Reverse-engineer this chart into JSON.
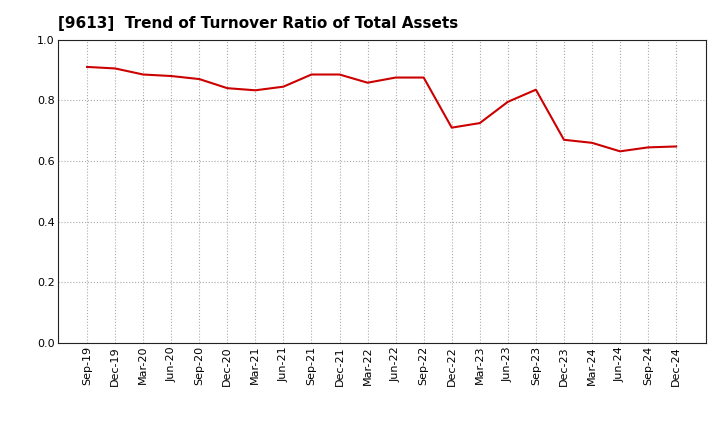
{
  "title": "[9613]  Trend of Turnover Ratio of Total Assets",
  "labels": [
    "Sep-19",
    "Dec-19",
    "Mar-20",
    "Jun-20",
    "Sep-20",
    "Dec-20",
    "Mar-21",
    "Jun-21",
    "Sep-21",
    "Dec-21",
    "Mar-22",
    "Jun-22",
    "Sep-22",
    "Dec-22",
    "Mar-23",
    "Jun-23",
    "Sep-23",
    "Dec-23",
    "Mar-24",
    "Jun-24",
    "Sep-24",
    "Dec-24"
  ],
  "values": [
    0.91,
    0.905,
    0.885,
    0.88,
    0.87,
    0.84,
    0.833,
    0.845,
    0.885,
    0.885,
    0.858,
    0.875,
    0.875,
    0.71,
    0.725,
    0.795,
    0.835,
    0.67,
    0.66,
    0.632,
    0.645,
    0.648
  ],
  "line_color": "#cc0000",
  "background_color": "#ffffff",
  "grid_color": "#aaaaaa",
  "ylim": [
    0.0,
    1.0
  ],
  "yticks": [
    0.0,
    0.2,
    0.4,
    0.6,
    0.8,
    1.0
  ],
  "title_fontsize": 11,
  "tick_fontsize": 8
}
